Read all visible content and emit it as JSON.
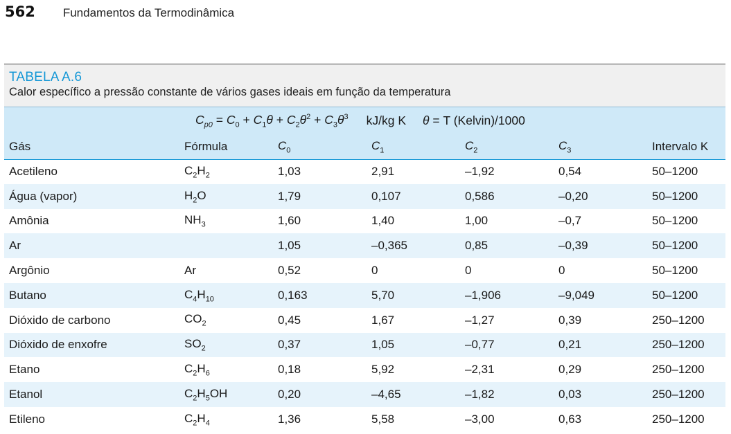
{
  "page": {
    "number": "562",
    "book_title": "Fundamentos da Termodinâmica"
  },
  "table": {
    "label": "TABELA A.6",
    "caption": "Calor específico a pressão constante de vários gases ideais em função da temperatura",
    "formula": {
      "lhs_symbol": "C",
      "lhs_sub": "p0",
      "eq": "=",
      "t0_symbol": "C",
      "t0_sub": "0",
      "plus": "+",
      "t1_symbol": "C",
      "t1_sub": "1",
      "theta": "θ",
      "t2_symbol": "C",
      "t2_sub": "2",
      "sq": "2",
      "t3_symbol": "C",
      "t3_sub": "3",
      "cube": "3",
      "units": "kJ/kg K",
      "theta_def": "θ = T (Kelvin)/1000"
    },
    "headers": {
      "gas": "Gás",
      "formula": "Fórmula",
      "c": "C",
      "c0_sub": "0",
      "c1_sub": "1",
      "c2_sub": "2",
      "c3_sub": "3",
      "range": "Intervalo K"
    },
    "rows": [
      {
        "gas": "Acetileno",
        "f1": "C",
        "s1": "2",
        "f2": "H",
        "s2": "2",
        "f3": "",
        "s3": "",
        "f4": "",
        "c0": "1,03",
        "c1": "2,91",
        "c2": "–1,92",
        "c3": "0,54",
        "range": "50–1200"
      },
      {
        "gas": "Água (vapor)",
        "f1": "H",
        "s1": "2",
        "f2": "O",
        "s2": "",
        "f3": "",
        "s3": "",
        "f4": "",
        "c0": "1,79",
        "c1": "0,107",
        "c2": "0,586",
        "c3": "–0,20",
        "range": "50–1200"
      },
      {
        "gas": "Amônia",
        "f1": "NH",
        "s1": "3",
        "f2": "",
        "s2": "",
        "f3": "",
        "s3": "",
        "f4": "",
        "c0": "1,60",
        "c1": "1,40",
        "c2": "1,00",
        "c3": "–0,7",
        "range": "50–1200"
      },
      {
        "gas": "Ar",
        "f1": "",
        "s1": "",
        "f2": "",
        "s2": "",
        "f3": "",
        "s3": "",
        "f4": "",
        "c0": "1,05",
        "c1": "–0,365",
        "c2": "0,85",
        "c3": "–0,39",
        "range": "50–1200"
      },
      {
        "gas": "Argônio",
        "f1": "Ar",
        "s1": "",
        "f2": "",
        "s2": "",
        "f3": "",
        "s3": "",
        "f4": "",
        "c0": "0,52",
        "c1": "0",
        "c2": "0",
        "c3": "0",
        "range": "50–1200"
      },
      {
        "gas": "Butano",
        "f1": "C",
        "s1": "4",
        "f2": "H",
        "s2": "10",
        "f3": "",
        "s3": "",
        "f4": "",
        "c0": "0,163",
        "c1": "5,70",
        "c2": "–1,906",
        "c3": "–9,049",
        "range": "50–1200"
      },
      {
        "gas": "Dióxido de carbono",
        "f1": "CO",
        "s1": "2",
        "f2": "",
        "s2": "",
        "f3": "",
        "s3": "",
        "f4": "",
        "c0": "0,45",
        "c1": "1,67",
        "c2": "–1,27",
        "c3": "0,39",
        "range": "250–1200"
      },
      {
        "gas": "Dióxido de enxofre",
        "f1": "SO",
        "s1": "2",
        "f2": "",
        "s2": "",
        "f3": "",
        "s3": "",
        "f4": "",
        "c0": "0,37",
        "c1": "1,05",
        "c2": "–0,77",
        "c3": "0,21",
        "range": "250–1200"
      },
      {
        "gas": "Etano",
        "f1": "C",
        "s1": "2",
        "f2": "H",
        "s2": "6",
        "f3": "",
        "s3": "",
        "f4": "",
        "c0": "0,18",
        "c1": "5,92",
        "c2": "–2,31",
        "c3": "0,29",
        "range": "250–1200"
      },
      {
        "gas": "Etanol",
        "f1": "C",
        "s1": "2",
        "f2": "H",
        "s2": "5",
        "f3": "OH",
        "s3": "",
        "f4": "",
        "c0": "0,20",
        "c1": "–4,65",
        "c2": "–1,82",
        "c3": "0,03",
        "range": "250–1200"
      },
      {
        "gas": "Etileno",
        "f1": "C",
        "s1": "2",
        "f2": "H",
        "s2": "4",
        "f3": "",
        "s3": "",
        "f4": "",
        "c0": "1,36",
        "c1": "5,58",
        "c2": "–3,00",
        "c3": "0,63",
        "range": "250–1200"
      }
    ]
  },
  "colors": {
    "accent_blue": "#1497d6",
    "header_band": "#cfe9f8",
    "row_alt": "#e6f3fb",
    "caption_band": "#f0f0f0"
  }
}
